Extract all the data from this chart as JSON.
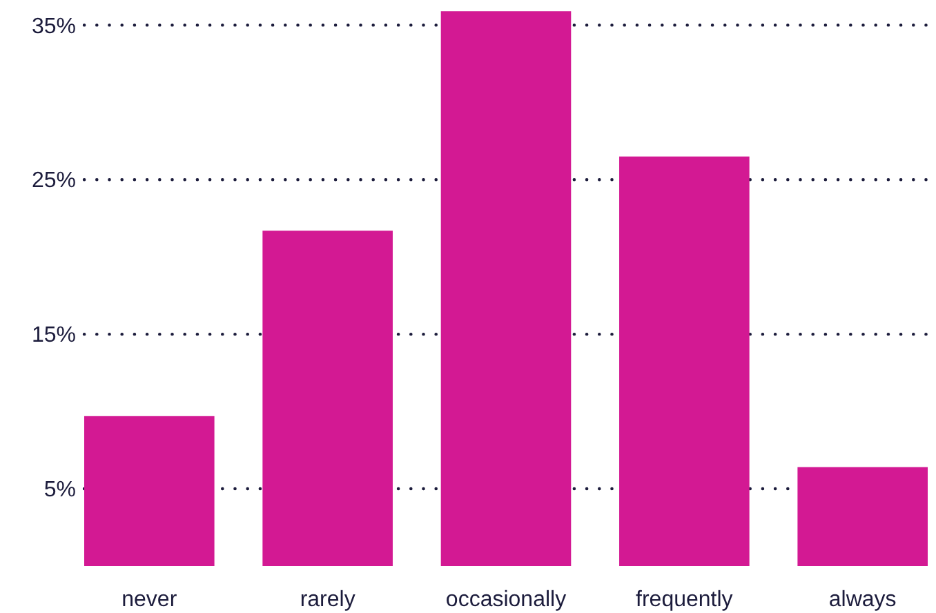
{
  "chart_data": {
    "type": "bar",
    "categories": [
      "never",
      "rarely",
      "occasionally",
      "frequently",
      "always"
    ],
    "values": [
      9.7,
      21.7,
      35.9,
      26.5,
      6.4
    ],
    "color": "#d31993",
    "ylim": [
      0,
      36
    ],
    "yticks": [
      {
        "value": 5,
        "label": "5%"
      },
      {
        "value": 15,
        "label": "15%"
      },
      {
        "value": 25,
        "label": "25%"
      },
      {
        "value": 35,
        "label": "35%"
      }
    ],
    "grid": "y"
  }
}
